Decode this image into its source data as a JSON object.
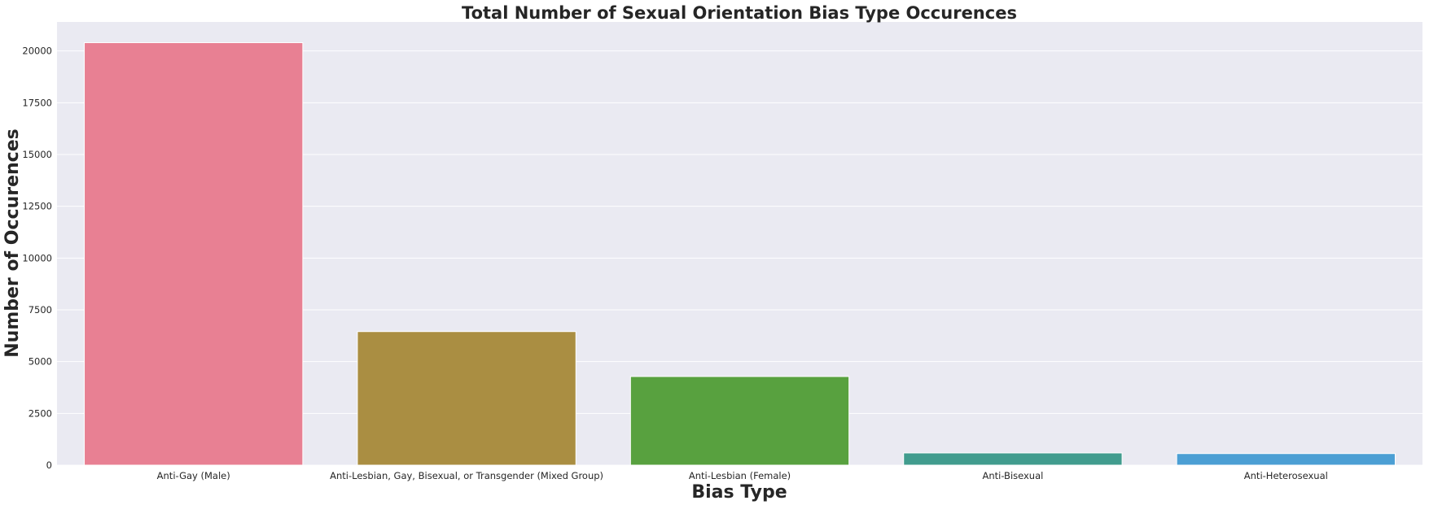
{
  "chart_data": {
    "type": "bar",
    "title": "Total Number of Sexual Orientation Bias Type Occurences",
    "xlabel": "Bias Type",
    "ylabel": "Number of Occurences",
    "categories": [
      "Anti-Gay (Male)",
      "Anti-Lesbian, Gay, Bisexual, or Transgender (Mixed Group)",
      "Anti-Lesbian (Female)",
      "Anti-Bisexual",
      "Anti-Heterosexual"
    ],
    "values": [
      20400,
      6450,
      4280,
      590,
      560
    ],
    "colors": [
      "#e88093",
      "#aa8e42",
      "#58a13f",
      "#419c8e",
      "#4c9fd4"
    ],
    "ylim": [
      0,
      21400
    ],
    "yticks": [
      0,
      2500,
      5000,
      7500,
      10000,
      12500,
      15000,
      17500,
      20000
    ],
    "grid": true,
    "background": "#eaeaf2"
  }
}
